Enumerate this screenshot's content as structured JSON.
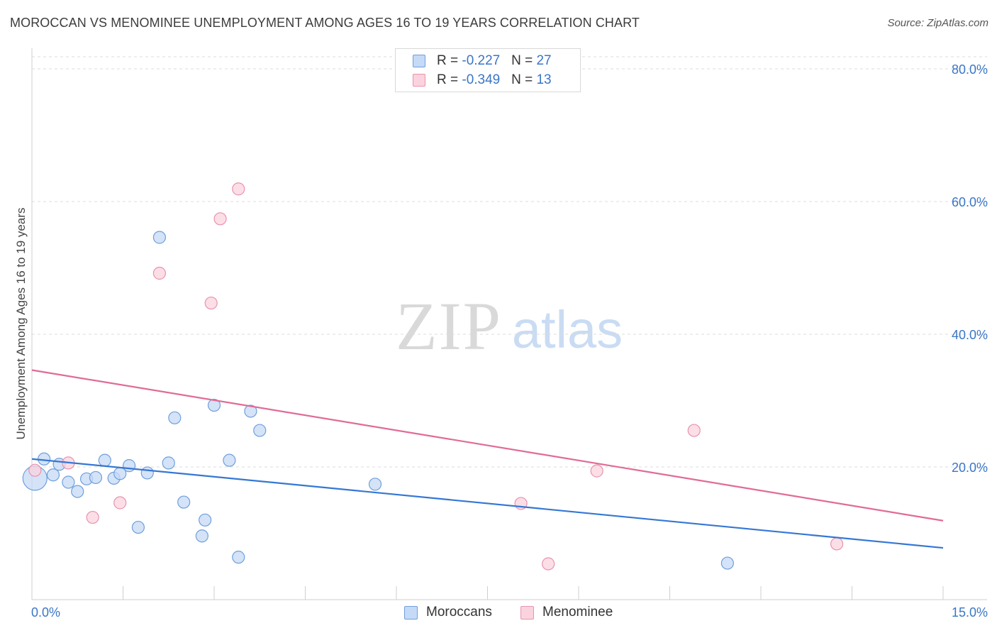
{
  "chart_data": {
    "type": "scatter",
    "title": "MOROCCAN VS MENOMINEE UNEMPLOYMENT AMONG AGES 16 TO 19 YEARS CORRELATION CHART",
    "source": "Source: ZipAtlas.com",
    "ylabel": "Unemployment Among Ages 16 to 19 years",
    "xlabel": "",
    "xlim": [
      0,
      15
    ],
    "ylim": [
      0,
      80
    ],
    "x_tick_labels": [
      "0.0%",
      "15.0%"
    ],
    "y_tick_labels": [
      "20.0%",
      "40.0%",
      "60.0%",
      "80.0%"
    ],
    "y_ticks": [
      20,
      40,
      60,
      80
    ],
    "watermark": {
      "a": "ZIP",
      "b": "atlas"
    },
    "legend_stats": [
      {
        "r_label": "R = ",
        "r_value": "-0.227",
        "n_label": "N = ",
        "n_value": "27",
        "color": "#a9c8f2",
        "border": "#6f9fdc"
      },
      {
        "r_label": "R = ",
        "r_value": "-0.349",
        "n_label": "N = ",
        "n_value": "13",
        "color": "#f7c3d2",
        "border": "#e893ad"
      }
    ],
    "series": [
      {
        "name": "Moroccans",
        "fill": "#c5daf6",
        "stroke": "#6f9fdc",
        "line_color": "#3577d4",
        "trend": {
          "y_at_xmin": 21.2,
          "y_at_xmax": 7.8
        },
        "points": [
          {
            "x": 0.05,
            "y": 18.3,
            "big": true
          },
          {
            "x": 0.2,
            "y": 21.2
          },
          {
            "x": 0.35,
            "y": 18.8
          },
          {
            "x": 0.45,
            "y": 20.4
          },
          {
            "x": 0.6,
            "y": 17.7
          },
          {
            "x": 0.75,
            "y": 16.3
          },
          {
            "x": 0.9,
            "y": 18.2
          },
          {
            "x": 1.05,
            "y": 18.4
          },
          {
            "x": 1.2,
            "y": 21.0
          },
          {
            "x": 1.35,
            "y": 18.3
          },
          {
            "x": 1.45,
            "y": 19.0
          },
          {
            "x": 1.6,
            "y": 20.2
          },
          {
            "x": 1.75,
            "y": 10.9
          },
          {
            "x": 1.9,
            "y": 19.1
          },
          {
            "x": 2.1,
            "y": 54.6
          },
          {
            "x": 2.25,
            "y": 20.6
          },
          {
            "x": 2.35,
            "y": 27.4
          },
          {
            "x": 2.5,
            "y": 14.7
          },
          {
            "x": 2.8,
            "y": 9.6
          },
          {
            "x": 2.85,
            "y": 12.0
          },
          {
            "x": 3.0,
            "y": 29.3
          },
          {
            "x": 3.25,
            "y": 21.0
          },
          {
            "x": 3.4,
            "y": 6.4
          },
          {
            "x": 3.6,
            "y": 28.4
          },
          {
            "x": 3.75,
            "y": 25.5
          },
          {
            "x": 5.65,
            "y": 17.4
          },
          {
            "x": 11.45,
            "y": 5.5
          }
        ]
      },
      {
        "name": "Menominee",
        "fill": "#fbd3df",
        "stroke": "#e893ad",
        "line_color": "#e06b96",
        "trend": {
          "y_at_xmin": 34.6,
          "y_at_xmax": 11.9
        },
        "points": [
          {
            "x": 0.05,
            "y": 19.5
          },
          {
            "x": 0.6,
            "y": 20.6
          },
          {
            "x": 1.0,
            "y": 12.4
          },
          {
            "x": 1.45,
            "y": 14.6
          },
          {
            "x": 2.1,
            "y": 49.2
          },
          {
            "x": 2.95,
            "y": 44.7
          },
          {
            "x": 3.1,
            "y": 57.4
          },
          {
            "x": 3.4,
            "y": 61.9
          },
          {
            "x": 8.05,
            "y": 14.5
          },
          {
            "x": 8.5,
            "y": 5.4
          },
          {
            "x": 9.3,
            "y": 19.4
          },
          {
            "x": 10.9,
            "y": 25.5
          },
          {
            "x": 13.25,
            "y": 8.4
          }
        ]
      }
    ]
  }
}
